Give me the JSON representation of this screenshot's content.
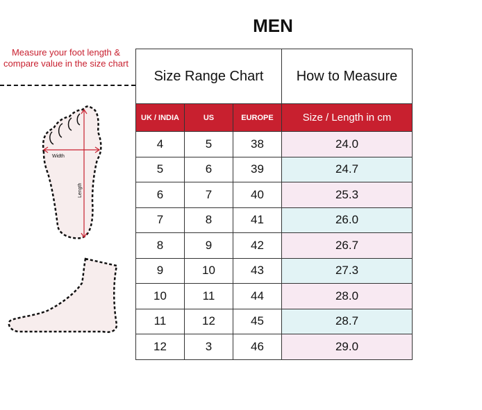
{
  "title": "MEN",
  "note": "Measure your foot length & compare value in the size chart",
  "illustration": {
    "width_label": "Width",
    "length_label": "Length"
  },
  "header": {
    "size_range": "Size Range Chart",
    "how_to": "How to Measure"
  },
  "columns": [
    "UK / INDIA",
    "US",
    "EUROPE",
    "Size / Length in cm"
  ],
  "rows": [
    [
      "4",
      "5",
      "38",
      "24.0"
    ],
    [
      "5",
      "6",
      "39",
      "24.7"
    ],
    [
      "6",
      "7",
      "40",
      "25.3"
    ],
    [
      "7",
      "8",
      "41",
      "26.0"
    ],
    [
      "8",
      "9",
      "42",
      "26.7"
    ],
    [
      "9",
      "10",
      "43",
      "27.3"
    ],
    [
      "10",
      "11",
      "44",
      "28.0"
    ],
    [
      "11",
      "12",
      "45",
      "28.7"
    ],
    [
      "12",
      "3",
      "46",
      "29.0"
    ]
  ],
  "colors": {
    "accent": "#c8202f",
    "row_pink": "#f8e9f2",
    "row_cyan": "#e2f3f5"
  }
}
